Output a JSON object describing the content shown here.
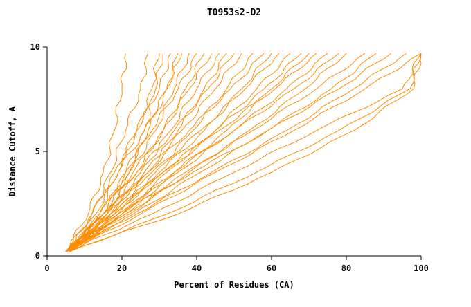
{
  "chart_data": {
    "type": "line",
    "title": "T0953s2-D2",
    "xlabel": "Percent of Residues (CA)",
    "ylabel": "Distance Cutoff, A",
    "xlim": [
      0,
      100
    ],
    "ylim": [
      0,
      10
    ],
    "x_ticks": [
      0,
      20,
      40,
      60,
      80,
      100
    ],
    "y_ticks": [
      0,
      5,
      10
    ],
    "grid": false,
    "legend": "none",
    "line_color": "#ff8c00",
    "axis_color": "#000000",
    "background_color": "#ffffff",
    "y_levels": [
      0.2,
      2,
      4,
      6,
      8,
      9.7
    ],
    "series": [
      {
        "x": [
          5,
          11,
          15,
          18,
          20,
          21
        ]
      },
      {
        "x": [
          5,
          12,
          17,
          21,
          25,
          27
        ]
      },
      {
        "x": [
          6,
          14,
          19,
          24,
          28,
          30
        ]
      },
      {
        "x": [
          5,
          15,
          21,
          26,
          29,
          31
        ]
      },
      {
        "x": [
          6,
          12,
          18,
          24,
          30,
          33
        ]
      },
      {
        "x": [
          5,
          16,
          22,
          27,
          32,
          35
        ]
      },
      {
        "x": [
          6,
          13,
          19,
          26,
          32,
          36
        ]
      },
      {
        "x": [
          5,
          15,
          22,
          29,
          34,
          38
        ]
      },
      {
        "x": [
          6,
          14,
          21,
          28,
          35,
          40
        ]
      },
      {
        "x": [
          5,
          17,
          24,
          31,
          37,
          42
        ]
      },
      {
        "x": [
          6,
          15,
          23,
          31,
          38,
          44
        ]
      },
      {
        "x": [
          5,
          16,
          25,
          33,
          40,
          46
        ]
      },
      {
        "x": [
          6,
          18,
          27,
          35,
          42,
          48
        ]
      },
      {
        "x": [
          5,
          15,
          24,
          34,
          43,
          50
        ]
      },
      {
        "x": [
          6,
          17,
          26,
          36,
          45,
          52
        ]
      },
      {
        "x": [
          5,
          19,
          29,
          39,
          48,
          55
        ]
      },
      {
        "x": [
          6,
          16,
          27,
          38,
          49,
          58
        ]
      },
      {
        "x": [
          5,
          18,
          30,
          42,
          52,
          60
        ]
      },
      {
        "x": [
          6,
          15,
          28,
          41,
          53,
          62
        ]
      },
      {
        "x": [
          5,
          20,
          32,
          45,
          56,
          65
        ]
      },
      {
        "x": [
          6,
          18,
          31,
          45,
          58,
          68
        ]
      },
      {
        "x": [
          5,
          21,
          34,
          48,
          60,
          70
        ]
      },
      {
        "x": [
          6,
          17,
          31,
          46,
          61,
          72
        ]
      },
      {
        "x": [
          5,
          20,
          35,
          50,
          64,
          75
        ]
      },
      {
        "x": [
          6,
          19,
          34,
          50,
          66,
          78
        ]
      },
      {
        "x": [
          5,
          22,
          38,
          54,
          69,
          80
        ]
      },
      {
        "x": [
          6,
          20,
          37,
          55,
          72,
          85
        ]
      },
      {
        "x": [
          5,
          23,
          41,
          59,
          76,
          88
        ]
      },
      {
        "x": [
          6,
          21,
          39,
          59,
          78,
          92
        ]
      },
      {
        "x": [
          5,
          24,
          44,
          64,
          82,
          96
        ]
      },
      {
        "x": [
          6,
          25,
          45,
          66,
          85,
          100
        ]
      },
      {
        "x": [
          5,
          28,
          50,
          72,
          95,
          100
        ]
      },
      {
        "x": [
          6,
          32,
          56,
          78,
          97,
          100
        ]
      },
      {
        "x": [
          5,
          35,
          60,
          82,
          98,
          100
        ]
      }
    ]
  }
}
